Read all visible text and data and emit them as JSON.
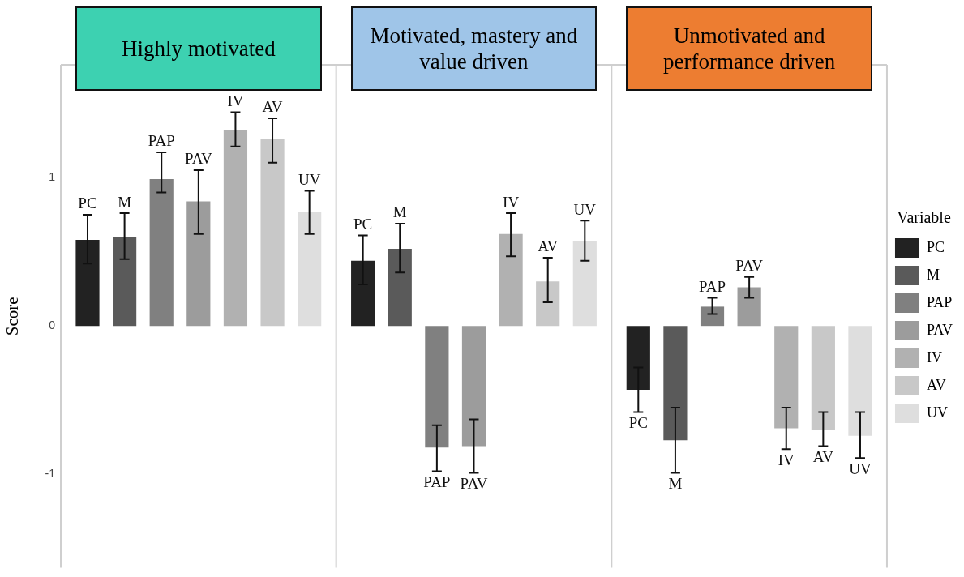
{
  "chart_data": {
    "type": "bar",
    "ylabel": "Score",
    "legend_title": "Variable",
    "categories": [
      "Highly motivated",
      "Motivated, mastery and value driven",
      "Unmotivated and performance driven"
    ],
    "series": [
      {
        "name": "PC",
        "color": "#222222",
        "values": [
          0.58,
          0.44,
          -0.43
        ],
        "errors": [
          [
            0.42,
            0.75
          ],
          [
            0.28,
            0.61
          ],
          [
            -0.58,
            -0.28
          ]
        ]
      },
      {
        "name": "M",
        "color": "#5a5a5a",
        "values": [
          0.6,
          0.52,
          -0.77
        ],
        "errors": [
          [
            0.45,
            0.76
          ],
          [
            0.36,
            0.69
          ],
          [
            -0.99,
            -0.55
          ]
        ]
      },
      {
        "name": "PAP",
        "color": "#808080",
        "values": [
          0.99,
          -0.82,
          0.13
        ],
        "errors": [
          [
            0.9,
            1.17
          ],
          [
            -0.98,
            -0.67
          ],
          [
            0.08,
            0.19
          ]
        ]
      },
      {
        "name": "PAV",
        "color": "#9c9c9c",
        "values": [
          0.84,
          -0.81,
          0.26
        ],
        "errors": [
          [
            0.62,
            1.05
          ],
          [
            -0.99,
            -0.63
          ],
          [
            0.19,
            0.33
          ]
        ]
      },
      {
        "name": "IV",
        "color": "#b1b1b1",
        "values": [
          1.32,
          0.62,
          -0.69
        ],
        "errors": [
          [
            1.21,
            1.44
          ],
          [
            0.47,
            0.76
          ],
          [
            -0.83,
            -0.55
          ]
        ]
      },
      {
        "name": "AV",
        "color": "#c8c8c8",
        "values": [
          1.26,
          0.3,
          -0.7
        ],
        "errors": [
          [
            1.1,
            1.4
          ],
          [
            0.16,
            0.46
          ],
          [
            -0.81,
            -0.58
          ]
        ]
      },
      {
        "name": "UV",
        "color": "#dedede",
        "values": [
          0.77,
          0.57,
          -0.74
        ],
        "errors": [
          [
            0.62,
            0.91
          ],
          [
            0.44,
            0.71
          ],
          [
            -0.89,
            -0.58
          ]
        ]
      }
    ],
    "ylim": [
      -1.63,
      1.76
    ],
    "yticks": [
      -1,
      0,
      1
    ],
    "grid": false,
    "legend": "right"
  }
}
